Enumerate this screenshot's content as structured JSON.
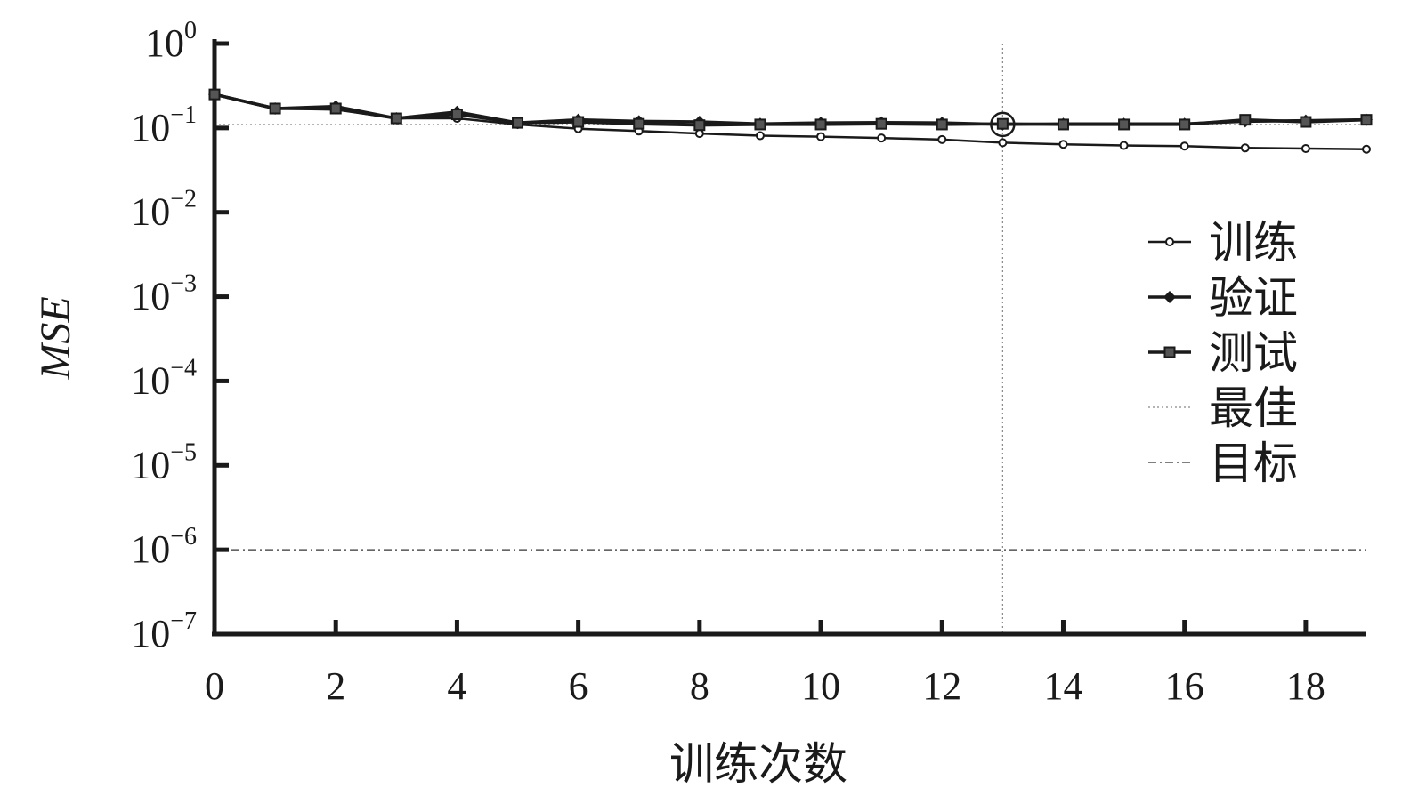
{
  "chart_data": {
    "type": "line",
    "xlabel": "训练次数",
    "ylabel": "MSE",
    "x_ticks": [
      0,
      2,
      4,
      6,
      8,
      10,
      12,
      14,
      16,
      18
    ],
    "xlim": [
      0,
      19
    ],
    "y_scale": "log",
    "ylim": [
      1e-07,
      1
    ],
    "y_ticks": [
      {
        "base": "10",
        "exp": "0"
      },
      {
        "base": "10",
        "exp": "−1"
      },
      {
        "base": "10",
        "exp": "−2"
      },
      {
        "base": "10",
        "exp": "−3"
      },
      {
        "base": "10",
        "exp": "−4"
      },
      {
        "base": "10",
        "exp": "−5"
      },
      {
        "base": "10",
        "exp": "−6"
      },
      {
        "base": "10",
        "exp": "−7"
      }
    ],
    "x": [
      0,
      1,
      2,
      3,
      4,
      5,
      6,
      7,
      8,
      9,
      10,
      11,
      12,
      13,
      14,
      15,
      16,
      17,
      18,
      19
    ],
    "series": [
      {
        "name": "训练",
        "marker": "circle",
        "values": [
          0.25,
          0.17,
          0.165,
          0.13,
          0.13,
          0.11,
          0.098,
          0.092,
          0.086,
          0.081,
          0.079,
          0.076,
          0.073,
          0.067,
          0.064,
          0.062,
          0.061,
          0.058,
          0.057,
          0.056
        ]
      },
      {
        "name": "验证",
        "marker": "diamond",
        "values": [
          0.25,
          0.17,
          0.18,
          0.13,
          0.155,
          0.115,
          0.125,
          0.12,
          0.118,
          0.112,
          0.115,
          0.116,
          0.115,
          0.11,
          0.112,
          0.112,
          0.112,
          0.12,
          0.122,
          0.125
        ]
      },
      {
        "name": "测试",
        "marker": "square",
        "values": [
          0.25,
          0.17,
          0.17,
          0.13,
          0.145,
          0.115,
          0.118,
          0.112,
          0.108,
          0.11,
          0.11,
          0.112,
          0.11,
          0.112,
          0.11,
          0.11,
          0.11,
          0.125,
          0.118,
          0.125
        ]
      }
    ],
    "best": {
      "name": "最佳",
      "epoch": 13,
      "value": 0.11
    },
    "goal": {
      "name": "目标",
      "value": 1e-06
    },
    "legend_position": "right",
    "grid": false
  }
}
